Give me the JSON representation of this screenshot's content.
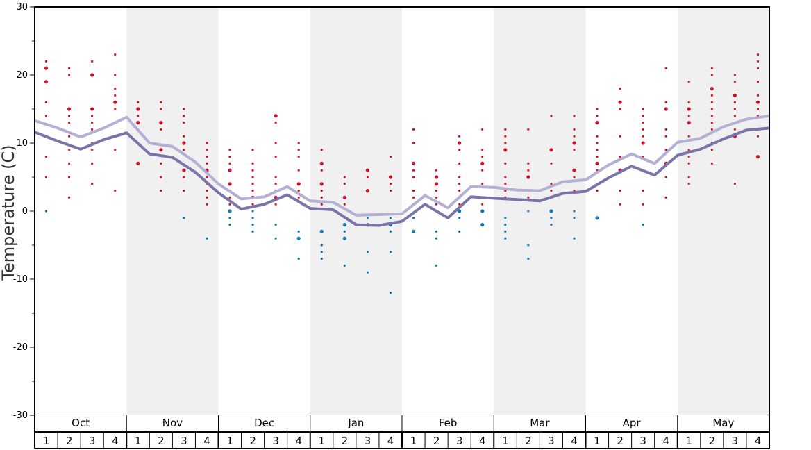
{
  "chart_data": {
    "type": "line",
    "ylabel": "Temperature (C)",
    "ylim": [
      -30,
      30
    ],
    "yticks": [
      "30",
      "20",
      "10",
      "0",
      "-10",
      "-20",
      "-30"
    ],
    "months": [
      "Oct",
      "Nov",
      "Dec",
      "Jan",
      "Feb",
      "Mar",
      "Apr",
      "May"
    ],
    "weeks": [
      "1",
      "2",
      "3",
      "4"
    ],
    "colors": {
      "series_light": "#b3b0d3",
      "series_dark": "#7a74a8",
      "warm_dots": "#d1112a",
      "cold_dots": "#1478b4",
      "band_shade": "#f0f0f0"
    },
    "series": [
      {
        "values": [
          13.3,
          12.2,
          10.9,
          12.2,
          13.8,
          10.0,
          9.5,
          7.2,
          4.0,
          1.8,
          2.1,
          3.6,
          1.5,
          1.3,
          -0.6,
          -0.5,
          -0.4,
          2.3,
          0.5,
          3.6,
          3.5,
          3.1,
          3.0,
          4.3,
          4.6,
          6.8,
          8.4,
          7.0,
          10.1,
          10.7,
          12.4,
          13.5,
          14.0
        ]
      },
      {
        "values": [
          11.6,
          10.3,
          9.1,
          10.5,
          11.5,
          8.4,
          7.9,
          5.7,
          2.7,
          0.3,
          1.0,
          2.4,
          0.4,
          0.2,
          -2.0,
          -2.1,
          -1.5,
          1.0,
          -1.0,
          2.1,
          1.9,
          1.7,
          1.5,
          2.6,
          2.9,
          4.9,
          6.6,
          5.3,
          8.2,
          9.1,
          10.6,
          11.9,
          12.2
        ]
      }
    ],
    "warm_dots": [
      [
        0,
        22
      ],
      [
        0,
        21
      ],
      [
        0,
        19
      ],
      [
        0,
        16
      ],
      [
        0,
        14
      ],
      [
        0,
        11
      ],
      [
        0,
        8
      ],
      [
        0,
        5
      ],
      [
        1,
        21
      ],
      [
        1,
        20
      ],
      [
        1,
        15
      ],
      [
        1,
        14
      ],
      [
        1,
        13
      ],
      [
        1,
        11
      ],
      [
        1,
        9
      ],
      [
        1,
        7
      ],
      [
        1,
        5
      ],
      [
        1,
        2
      ],
      [
        2,
        22
      ],
      [
        2,
        20
      ],
      [
        2,
        15
      ],
      [
        2,
        14
      ],
      [
        2,
        13
      ],
      [
        2,
        12
      ],
      [
        2,
        10
      ],
      [
        2,
        9
      ],
      [
        2,
        7
      ],
      [
        2,
        4
      ],
      [
        3,
        23
      ],
      [
        3,
        20
      ],
      [
        3,
        18
      ],
      [
        3,
        17
      ],
      [
        3,
        16
      ],
      [
        3,
        15
      ],
      [
        3,
        13
      ],
      [
        3,
        11
      ],
      [
        3,
        9
      ],
      [
        3,
        3
      ],
      [
        4,
        16
      ],
      [
        4,
        15
      ],
      [
        4,
        14
      ],
      [
        4,
        13
      ],
      [
        4,
        12
      ],
      [
        4,
        7
      ],
      [
        5,
        16
      ],
      [
        5,
        15
      ],
      [
        5,
        13
      ],
      [
        5,
        12
      ],
      [
        5,
        9
      ],
      [
        5,
        7
      ],
      [
        5,
        5
      ],
      [
        5,
        3
      ],
      [
        6,
        15
      ],
      [
        6,
        14
      ],
      [
        6,
        13
      ],
      [
        6,
        11
      ],
      [
        6,
        10
      ],
      [
        6,
        9
      ],
      [
        6,
        6
      ],
      [
        6,
        5
      ],
      [
        6,
        3
      ],
      [
        7,
        10
      ],
      [
        7,
        9
      ],
      [
        7,
        8
      ],
      [
        7,
        7
      ],
      [
        7,
        6
      ],
      [
        7,
        5
      ],
      [
        7,
        4
      ],
      [
        7,
        3
      ],
      [
        7,
        2
      ],
      [
        7,
        1
      ],
      [
        8,
        9
      ],
      [
        8,
        8
      ],
      [
        8,
        7
      ],
      [
        8,
        6
      ],
      [
        8,
        4
      ],
      [
        8,
        3
      ],
      [
        8,
        2
      ],
      [
        8,
        1
      ],
      [
        9,
        9
      ],
      [
        9,
        7
      ],
      [
        9,
        6
      ],
      [
        9,
        5
      ],
      [
        9,
        4
      ],
      [
        9,
        3
      ],
      [
        9,
        2
      ],
      [
        9,
        1
      ],
      [
        10,
        14
      ],
      [
        10,
        13
      ],
      [
        10,
        10
      ],
      [
        10,
        8
      ],
      [
        10,
        5
      ],
      [
        10,
        4
      ],
      [
        10,
        3
      ],
      [
        10,
        2
      ],
      [
        10,
        1
      ],
      [
        11,
        10
      ],
      [
        11,
        9
      ],
      [
        11,
        8
      ],
      [
        11,
        6
      ],
      [
        11,
        4
      ],
      [
        11,
        3
      ],
      [
        11,
        2
      ],
      [
        12,
        9
      ],
      [
        12,
        7
      ],
      [
        12,
        6
      ],
      [
        12,
        4
      ],
      [
        12,
        3
      ],
      [
        12,
        2
      ],
      [
        12,
        1
      ],
      [
        13,
        5
      ],
      [
        13,
        4
      ],
      [
        13,
        2
      ],
      [
        13,
        1
      ],
      [
        14,
        6
      ],
      [
        14,
        5
      ],
      [
        14,
        3
      ],
      [
        15,
        8
      ],
      [
        15,
        5
      ],
      [
        15,
        4
      ],
      [
        15,
        3
      ],
      [
        16,
        12
      ],
      [
        16,
        10
      ],
      [
        16,
        7
      ],
      [
        16,
        6
      ],
      [
        16,
        5
      ],
      [
        16,
        3
      ],
      [
        16,
        2
      ],
      [
        16,
        1
      ],
      [
        17,
        6
      ],
      [
        17,
        5
      ],
      [
        17,
        4
      ],
      [
        17,
        3
      ],
      [
        17,
        2
      ],
      [
        17,
        1
      ],
      [
        18,
        11
      ],
      [
        18,
        10
      ],
      [
        18,
        9
      ],
      [
        18,
        7
      ],
      [
        18,
        5
      ],
      [
        18,
        4
      ],
      [
        18,
        3
      ],
      [
        18,
        2
      ],
      [
        18,
        1
      ],
      [
        19,
        12
      ],
      [
        19,
        9
      ],
      [
        19,
        8
      ],
      [
        19,
        7
      ],
      [
        19,
        6
      ],
      [
        19,
        4
      ],
      [
        19,
        2
      ],
      [
        19,
        1
      ],
      [
        20,
        12
      ],
      [
        20,
        11
      ],
      [
        20,
        10
      ],
      [
        20,
        9
      ],
      [
        20,
        7
      ],
      [
        20,
        5
      ],
      [
        20,
        4
      ],
      [
        20,
        3
      ],
      [
        20,
        2
      ],
      [
        21,
        12
      ],
      [
        21,
        7
      ],
      [
        21,
        6
      ],
      [
        21,
        5
      ],
      [
        21,
        3
      ],
      [
        21,
        2
      ],
      [
        22,
        14
      ],
      [
        22,
        9
      ],
      [
        22,
        7
      ],
      [
        22,
        4
      ],
      [
        22,
        3
      ],
      [
        22,
        2
      ],
      [
        23,
        14
      ],
      [
        23,
        12
      ],
      [
        23,
        11
      ],
      [
        23,
        10
      ],
      [
        23,
        9
      ],
      [
        23,
        6
      ],
      [
        23,
        5
      ],
      [
        23,
        3
      ],
      [
        24,
        15
      ],
      [
        24,
        14
      ],
      [
        24,
        13
      ],
      [
        24,
        11
      ],
      [
        24,
        10
      ],
      [
        24,
        9
      ],
      [
        24,
        8
      ],
      [
        24,
        7
      ],
      [
        24,
        6
      ],
      [
        24,
        3
      ],
      [
        25,
        18
      ],
      [
        25,
        16
      ],
      [
        25,
        15
      ],
      [
        25,
        11
      ],
      [
        25,
        8
      ],
      [
        25,
        6
      ],
      [
        25,
        3
      ],
      [
        25,
        1
      ],
      [
        26,
        15
      ],
      [
        26,
        14
      ],
      [
        26,
        13
      ],
      [
        26,
        12
      ],
      [
        26,
        11
      ],
      [
        26,
        10
      ],
      [
        26,
        8
      ],
      [
        26,
        6
      ],
      [
        26,
        3
      ],
      [
        26,
        1
      ],
      [
        27,
        21
      ],
      [
        27,
        16
      ],
      [
        27,
        15
      ],
      [
        27,
        12
      ],
      [
        27,
        11
      ],
      [
        27,
        9
      ],
      [
        27,
        7
      ],
      [
        27,
        5
      ],
      [
        27,
        2
      ],
      [
        28,
        19
      ],
      [
        28,
        16
      ],
      [
        28,
        15
      ],
      [
        28,
        14
      ],
      [
        28,
        13
      ],
      [
        28,
        11
      ],
      [
        28,
        9
      ],
      [
        28,
        8
      ],
      [
        28,
        7
      ],
      [
        28,
        5
      ],
      [
        28,
        4
      ],
      [
        29,
        21
      ],
      [
        29,
        20
      ],
      [
        29,
        18
      ],
      [
        29,
        17
      ],
      [
        29,
        16
      ],
      [
        29,
        15
      ],
      [
        29,
        14
      ],
      [
        29,
        13
      ],
      [
        29,
        12
      ],
      [
        29,
        10
      ],
      [
        29,
        9
      ],
      [
        29,
        7
      ],
      [
        30,
        20
      ],
      [
        30,
        19
      ],
      [
        30,
        17
      ],
      [
        30,
        16
      ],
      [
        30,
        15
      ],
      [
        30,
        14
      ],
      [
        30,
        13
      ],
      [
        30,
        12
      ],
      [
        30,
        11
      ],
      [
        30,
        4
      ],
      [
        31,
        23
      ],
      [
        31,
        22
      ],
      [
        31,
        21
      ],
      [
        31,
        19
      ],
      [
        31,
        17
      ],
      [
        31,
        16
      ],
      [
        31,
        15
      ],
      [
        31,
        14
      ],
      [
        31,
        12
      ],
      [
        31,
        11
      ],
      [
        31,
        8
      ]
    ],
    "cold_dots": [
      [
        0,
        0
      ],
      [
        6,
        -1
      ],
      [
        7,
        -4
      ],
      [
        8,
        0
      ],
      [
        8,
        -1
      ],
      [
        8,
        -2
      ],
      [
        9,
        0
      ],
      [
        9,
        -1
      ],
      [
        9,
        -2
      ],
      [
        9,
        -3
      ],
      [
        10,
        -2
      ],
      [
        10,
        -4
      ],
      [
        11,
        -3
      ],
      [
        11,
        -4
      ],
      [
        11,
        -7
      ],
      [
        12,
        -3
      ],
      [
        12,
        -5
      ],
      [
        12,
        -6
      ],
      [
        12,
        -7
      ],
      [
        13,
        -2
      ],
      [
        13,
        -3
      ],
      [
        13,
        -4
      ],
      [
        13,
        -8
      ],
      [
        14,
        -1
      ],
      [
        14,
        -2
      ],
      [
        14,
        -6
      ],
      [
        14,
        -9
      ],
      [
        15,
        -1
      ],
      [
        15,
        -2
      ],
      [
        15,
        -3
      ],
      [
        15,
        -6
      ],
      [
        15,
        -12
      ],
      [
        16,
        -1
      ],
      [
        16,
        -3
      ],
      [
        17,
        -3
      ],
      [
        17,
        -4
      ],
      [
        17,
        -8
      ],
      [
        18,
        0
      ],
      [
        18,
        -1
      ],
      [
        18,
        -3
      ],
      [
        19,
        0
      ],
      [
        19,
        -2
      ],
      [
        20,
        -1
      ],
      [
        20,
        -2
      ],
      [
        20,
        -3
      ],
      [
        20,
        -4
      ],
      [
        21,
        0
      ],
      [
        21,
        -5
      ],
      [
        21,
        -7
      ],
      [
        22,
        0
      ],
      [
        22,
        -1
      ],
      [
        22,
        -2
      ],
      [
        23,
        0
      ],
      [
        23,
        -1
      ],
      [
        23,
        -4
      ],
      [
        24,
        -1
      ],
      [
        26,
        -2
      ]
    ]
  }
}
